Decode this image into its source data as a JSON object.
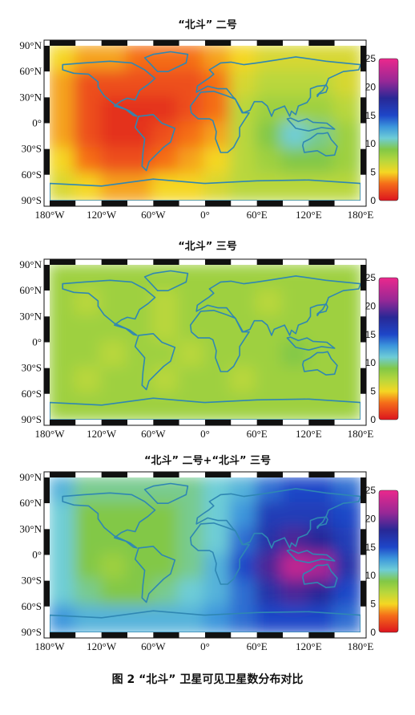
{
  "caption": "图 2  “北斗” 卫星可见卫星数分布对比",
  "colors": {
    "land": "#2f87b3",
    "frame_black": "#111111",
    "frame_white": "#ffffff"
  },
  "chart_data": [
    {
      "type": "heatmap",
      "title": "“北斗” 二号",
      "x_tick_labels": [
        "180°W",
        "120°W",
        "60°W",
        "0°",
        "60°E",
        "120°E",
        "180°E"
      ],
      "y_tick_labels": [
        "90°N",
        "60°N",
        "30°N",
        "0°",
        "30°S",
        "60°S",
        "90°S"
      ],
      "xlim": [
        -180,
        180
      ],
      "ylim": [
        -90,
        90
      ],
      "colorbar": {
        "ticks": [
          "0",
          "5",
          "10",
          "15",
          "20",
          "25"
        ],
        "range": [
          0,
          25
        ]
      },
      "lon_bins": [
        -180,
        -150,
        -120,
        -90,
        -60,
        -30,
        0,
        30,
        60,
        90,
        120,
        150
      ],
      "lat_bins": [
        90,
        60,
        30,
        0,
        -30,
        -60
      ],
      "values": [
        [
          5,
          4,
          4,
          3,
          3,
          3,
          4,
          5,
          6,
          6,
          6,
          6
        ],
        [
          4,
          2,
          2,
          2,
          2,
          2,
          3,
          6,
          7,
          7,
          7,
          6
        ],
        [
          4,
          2,
          1,
          1,
          1,
          2,
          3,
          7,
          8,
          8,
          8,
          7
        ],
        [
          4,
          2,
          1,
          1,
          2,
          3,
          4,
          7,
          9,
          11,
          10,
          8
        ],
        [
          5,
          3,
          2,
          2,
          3,
          4,
          5,
          7,
          8,
          9,
          9,
          8
        ],
        [
          6,
          5,
          4,
          4,
          5,
          5,
          6,
          7,
          7,
          7,
          7,
          7
        ]
      ]
    },
    {
      "type": "heatmap",
      "title": "“北斗” 三号",
      "x_tick_labels": [
        "180°W",
        "120°W",
        "60°W",
        "0°",
        "60°E",
        "120°E",
        "180°E"
      ],
      "y_tick_labels": [
        "90°N",
        "60°N",
        "30°N",
        "0°",
        "30°S",
        "60°S",
        "90°S"
      ],
      "xlim": [
        -180,
        180
      ],
      "ylim": [
        -90,
        90
      ],
      "colorbar": {
        "ticks": [
          "0",
          "5",
          "10",
          "15",
          "20",
          "25"
        ],
        "range": [
          0,
          25
        ]
      },
      "lon_bins": [
        -180,
        -150,
        -120,
        -90,
        -60,
        -30,
        0,
        30,
        60,
        90,
        120,
        150
      ],
      "lat_bins": [
        90,
        60,
        30,
        0,
        -30,
        -60
      ],
      "values": [
        [
          8,
          8,
          8,
          8,
          8,
          8,
          8,
          8,
          8,
          8,
          8,
          8
        ],
        [
          8,
          7,
          8,
          8,
          7,
          8,
          8,
          8,
          7,
          8,
          8,
          8
        ],
        [
          8,
          8,
          8,
          8,
          7,
          8,
          8,
          8,
          8,
          8,
          8,
          8
        ],
        [
          8,
          8,
          7,
          8,
          8,
          7,
          8,
          8,
          8,
          9,
          8,
          8
        ],
        [
          8,
          7,
          8,
          8,
          7,
          8,
          8,
          7,
          8,
          8,
          8,
          8
        ],
        [
          8,
          8,
          8,
          8,
          8,
          8,
          8,
          8,
          8,
          8,
          8,
          8
        ]
      ]
    },
    {
      "type": "heatmap",
      "title": "“北斗” 二号+“北斗” 三号",
      "x_tick_labels": [
        "180°W",
        "120°W",
        "60°W",
        "0°",
        "60°E",
        "120°E",
        "180°E"
      ],
      "y_tick_labels": [
        "90°N",
        "60°N",
        "30°N",
        "0°",
        "30°S",
        "60°S",
        "90°S"
      ],
      "xlim": [
        -180,
        180
      ],
      "ylim": [
        -90,
        90
      ],
      "colorbar": {
        "ticks": [
          "0",
          "5",
          "10",
          "15",
          "20",
          "25"
        ],
        "range": [
          0,
          25
        ]
      },
      "lon_bins": [
        -180,
        -150,
        -120,
        -90,
        -60,
        -30,
        0,
        30,
        60,
        90,
        120,
        150
      ],
      "lat_bins": [
        90,
        60,
        30,
        0,
        -30,
        -60
      ],
      "values": [
        [
          12,
          10,
          10,
          10,
          10,
          10,
          11,
          12,
          14,
          15,
          15,
          14
        ],
        [
          11,
          9,
          9,
          9,
          9,
          10,
          11,
          13,
          16,
          16,
          16,
          15
        ],
        [
          11,
          9,
          9,
          9,
          9,
          10,
          11,
          14,
          17,
          19,
          18,
          16
        ],
        [
          11,
          9,
          8,
          9,
          9,
          10,
          12,
          15,
          19,
          23,
          22,
          17
        ],
        [
          11,
          10,
          9,
          9,
          10,
          11,
          12,
          14,
          17,
          19,
          18,
          15
        ],
        [
          13,
          12,
          12,
          12,
          12,
          12,
          13,
          14,
          15,
          15,
          15,
          14
        ]
      ]
    }
  ]
}
